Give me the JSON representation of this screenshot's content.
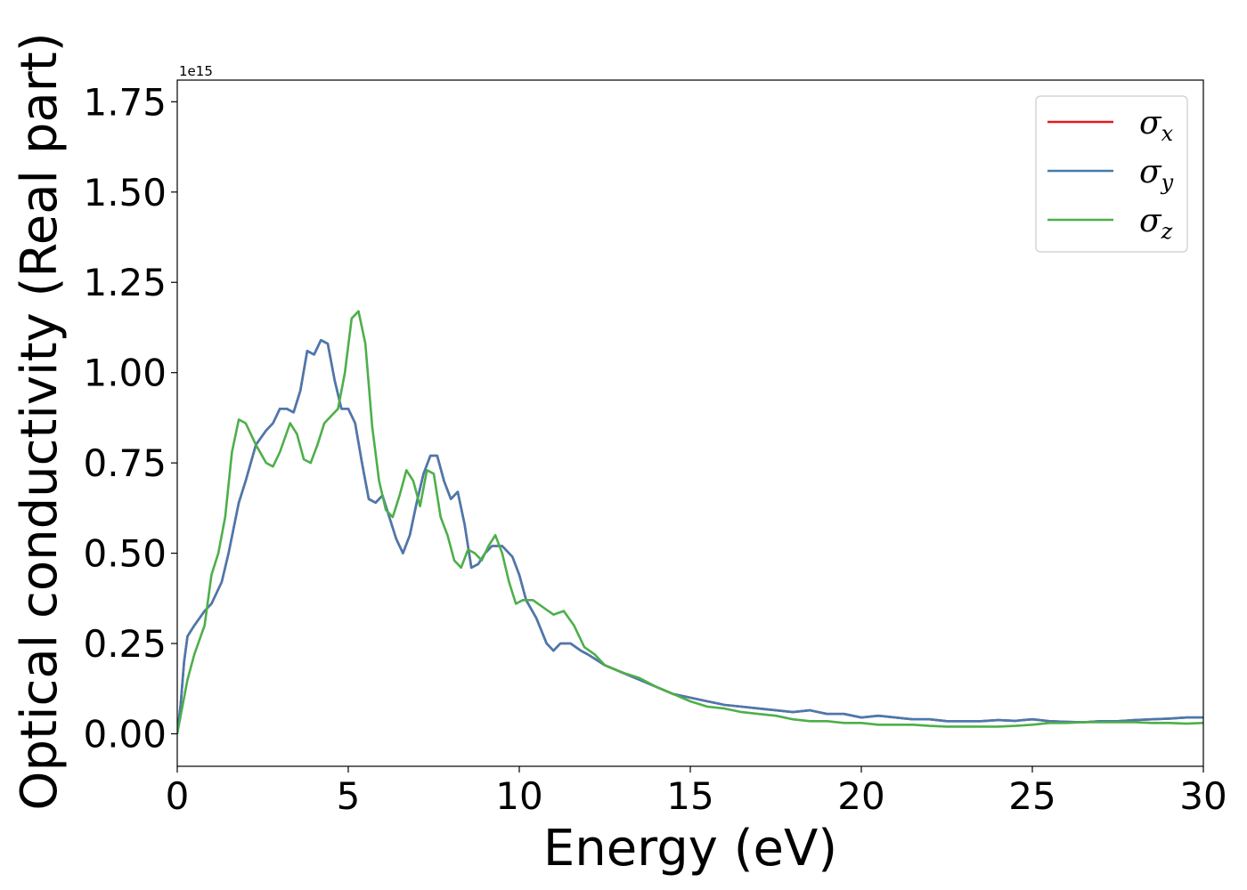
{
  "chart_data": {
    "type": "line",
    "xlabel": "Energy (eV)",
    "ylabel": "Optical conductivity (Real part)",
    "y_offset_label": "1e15",
    "xlim": [
      0,
      30
    ],
    "ylim": [
      -0.09,
      1.81
    ],
    "xticks": [
      0,
      5,
      10,
      15,
      20,
      25,
      30
    ],
    "xtick_labels": [
      "0",
      "5",
      "10",
      "15",
      "20",
      "25",
      "30"
    ],
    "yticks": [
      0.0,
      0.25,
      0.5,
      0.75,
      1.0,
      1.25,
      1.5,
      1.75
    ],
    "ytick_labels": [
      "0.00",
      "0.25",
      "0.50",
      "0.75",
      "1.00",
      "1.25",
      "1.50",
      "1.75"
    ],
    "grid": false,
    "legend_position": "top-right",
    "series": [
      {
        "name": "σx",
        "symbol": "σ",
        "subscript": "x",
        "color": "#e41a1c",
        "x": [
          0,
          0.1,
          0.2,
          0.3,
          0.5,
          0.8,
          1.0,
          1.3,
          1.5,
          1.8,
          2.0,
          2.3,
          2.6,
          2.8,
          3.0,
          3.2,
          3.4,
          3.6,
          3.8,
          4.0,
          4.2,
          4.4,
          4.6,
          4.8,
          5.0,
          5.2,
          5.4,
          5.6,
          5.8,
          6.0,
          6.2,
          6.4,
          6.6,
          6.8,
          7.0,
          7.2,
          7.4,
          7.6,
          7.8,
          8.0,
          8.2,
          8.4,
          8.6,
          8.8,
          9.0,
          9.2,
          9.5,
          9.8,
          10.0,
          10.2,
          10.5,
          10.8,
          11.0,
          11.2,
          11.5,
          11.8,
          12.0,
          12.5,
          13.0,
          13.5,
          14.0,
          14.5,
          15.0,
          15.5,
          16.0,
          16.5,
          17.0,
          17.5,
          18.0,
          18.5,
          19.0,
          19.5,
          20.0,
          20.5,
          21.0,
          21.5,
          22.0,
          22.5,
          23.0,
          23.5,
          24.0,
          24.5,
          25.0,
          25.5,
          26.0,
          26.5,
          27.0,
          27.5,
          28.0,
          28.5,
          29.0,
          29.5,
          30.0
        ],
        "y": [
          0,
          0.08,
          0.2,
          0.27,
          0.3,
          0.34,
          0.36,
          0.42,
          0.5,
          0.64,
          0.7,
          0.8,
          0.84,
          0.86,
          0.9,
          0.9,
          0.89,
          0.95,
          1.06,
          1.05,
          1.09,
          1.08,
          0.98,
          0.9,
          0.9,
          0.86,
          0.75,
          0.65,
          0.64,
          0.66,
          0.6,
          0.54,
          0.5,
          0.55,
          0.64,
          0.72,
          0.77,
          0.77,
          0.7,
          0.65,
          0.67,
          0.58,
          0.46,
          0.47,
          0.5,
          0.52,
          0.52,
          0.49,
          0.44,
          0.37,
          0.32,
          0.25,
          0.23,
          0.25,
          0.25,
          0.23,
          0.22,
          0.19,
          0.17,
          0.15,
          0.13,
          0.11,
          0.1,
          0.09,
          0.08,
          0.075,
          0.07,
          0.065,
          0.06,
          0.065,
          0.055,
          0.055,
          0.045,
          0.05,
          0.045,
          0.04,
          0.04,
          0.035,
          0.035,
          0.035,
          0.038,
          0.036,
          0.04,
          0.035,
          0.033,
          0.032,
          0.035,
          0.035,
          0.038,
          0.04,
          0.042,
          0.045,
          0.045
        ]
      },
      {
        "name": "σy",
        "symbol": "σ",
        "subscript": "y",
        "color": "#477aaf",
        "x": [
          0,
          0.1,
          0.2,
          0.3,
          0.5,
          0.8,
          1.0,
          1.3,
          1.5,
          1.8,
          2.0,
          2.3,
          2.6,
          2.8,
          3.0,
          3.2,
          3.4,
          3.6,
          3.8,
          4.0,
          4.2,
          4.4,
          4.6,
          4.8,
          5.0,
          5.2,
          5.4,
          5.6,
          5.8,
          6.0,
          6.2,
          6.4,
          6.6,
          6.8,
          7.0,
          7.2,
          7.4,
          7.6,
          7.8,
          8.0,
          8.2,
          8.4,
          8.6,
          8.8,
          9.0,
          9.2,
          9.5,
          9.8,
          10.0,
          10.2,
          10.5,
          10.8,
          11.0,
          11.2,
          11.5,
          11.8,
          12.0,
          12.5,
          13.0,
          13.5,
          14.0,
          14.5,
          15.0,
          15.5,
          16.0,
          16.5,
          17.0,
          17.5,
          18.0,
          18.5,
          19.0,
          19.5,
          20.0,
          20.5,
          21.0,
          21.5,
          22.0,
          22.5,
          23.0,
          23.5,
          24.0,
          24.5,
          25.0,
          25.5,
          26.0,
          26.5,
          27.0,
          27.5,
          28.0,
          28.5,
          29.0,
          29.5,
          30.0
        ],
        "y": [
          0,
          0.08,
          0.2,
          0.27,
          0.3,
          0.34,
          0.36,
          0.42,
          0.5,
          0.64,
          0.7,
          0.8,
          0.84,
          0.86,
          0.9,
          0.9,
          0.89,
          0.95,
          1.06,
          1.05,
          1.09,
          1.08,
          0.98,
          0.9,
          0.9,
          0.86,
          0.75,
          0.65,
          0.64,
          0.66,
          0.6,
          0.54,
          0.5,
          0.55,
          0.64,
          0.72,
          0.77,
          0.77,
          0.7,
          0.65,
          0.67,
          0.58,
          0.46,
          0.47,
          0.5,
          0.52,
          0.52,
          0.49,
          0.44,
          0.37,
          0.32,
          0.25,
          0.23,
          0.25,
          0.25,
          0.23,
          0.22,
          0.19,
          0.17,
          0.15,
          0.13,
          0.11,
          0.1,
          0.09,
          0.08,
          0.075,
          0.07,
          0.065,
          0.06,
          0.065,
          0.055,
          0.055,
          0.045,
          0.05,
          0.045,
          0.04,
          0.04,
          0.035,
          0.035,
          0.035,
          0.038,
          0.036,
          0.04,
          0.035,
          0.033,
          0.032,
          0.035,
          0.035,
          0.038,
          0.04,
          0.042,
          0.045,
          0.045
        ]
      },
      {
        "name": "σz",
        "symbol": "σ",
        "subscript": "z",
        "color": "#4daf4a",
        "x": [
          0,
          0.1,
          0.3,
          0.5,
          0.8,
          1.0,
          1.2,
          1.4,
          1.6,
          1.8,
          2.0,
          2.3,
          2.6,
          2.8,
          3.0,
          3.3,
          3.5,
          3.7,
          3.9,
          4.1,
          4.3,
          4.5,
          4.7,
          4.9,
          5.1,
          5.3,
          5.5,
          5.7,
          5.9,
          6.1,
          6.3,
          6.5,
          6.7,
          6.9,
          7.1,
          7.3,
          7.5,
          7.7,
          7.9,
          8.1,
          8.3,
          8.5,
          8.7,
          8.9,
          9.1,
          9.3,
          9.5,
          9.7,
          9.9,
          10.1,
          10.4,
          10.7,
          11.0,
          11.3,
          11.6,
          11.9,
          12.2,
          12.5,
          13.0,
          13.5,
          14.0,
          14.5,
          15.0,
          15.5,
          16.0,
          16.5,
          17.0,
          17.5,
          18.0,
          18.5,
          19.0,
          19.5,
          20.0,
          20.5,
          21.0,
          21.5,
          22.0,
          22.5,
          23.0,
          23.5,
          24.0,
          24.5,
          25.0,
          25.5,
          26.0,
          26.5,
          27.0,
          27.5,
          28.0,
          28.5,
          29.0,
          29.5,
          30.0
        ],
        "y": [
          0,
          0.05,
          0.15,
          0.22,
          0.3,
          0.44,
          0.5,
          0.6,
          0.78,
          0.87,
          0.86,
          0.8,
          0.75,
          0.74,
          0.78,
          0.86,
          0.83,
          0.76,
          0.75,
          0.8,
          0.86,
          0.88,
          0.9,
          1.0,
          1.15,
          1.17,
          1.08,
          0.85,
          0.7,
          0.62,
          0.6,
          0.66,
          0.73,
          0.7,
          0.63,
          0.73,
          0.72,
          0.6,
          0.55,
          0.48,
          0.46,
          0.51,
          0.5,
          0.48,
          0.52,
          0.55,
          0.5,
          0.42,
          0.36,
          0.37,
          0.37,
          0.35,
          0.33,
          0.34,
          0.3,
          0.24,
          0.22,
          0.19,
          0.17,
          0.155,
          0.13,
          0.11,
          0.09,
          0.075,
          0.07,
          0.06,
          0.055,
          0.05,
          0.04,
          0.035,
          0.035,
          0.03,
          0.03,
          0.025,
          0.025,
          0.025,
          0.022,
          0.02,
          0.02,
          0.02,
          0.02,
          0.022,
          0.025,
          0.03,
          0.03,
          0.032,
          0.032,
          0.032,
          0.032,
          0.03,
          0.03,
          0.028,
          0.03
        ]
      }
    ]
  }
}
